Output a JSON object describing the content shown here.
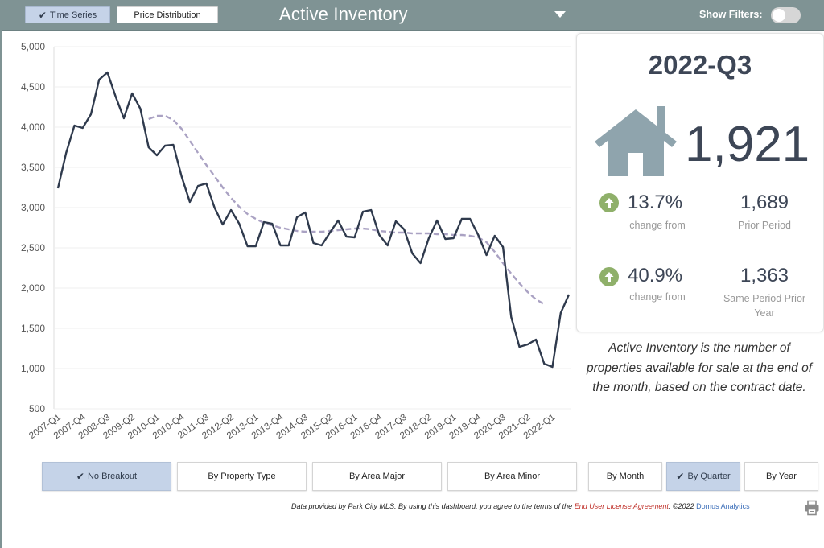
{
  "header": {
    "tabs": [
      {
        "label": "Time Series",
        "active": true
      },
      {
        "label": "Price Distribution",
        "active": false
      }
    ],
    "title": "Active Inventory",
    "filters_label": "Show Filters:",
    "filters_on": false
  },
  "chart_data": {
    "type": "line",
    "ylim": [
      500,
      5000
    ],
    "y_ticks": [
      "500",
      "1,000",
      "1,500",
      "2,000",
      "2,500",
      "3,000",
      "3,500",
      "4,000",
      "4,500",
      "5,000"
    ],
    "y_tick_values": [
      500,
      1000,
      1500,
      2000,
      2500,
      3000,
      3500,
      4000,
      4500,
      5000
    ],
    "x_tick_labels": [
      "2007-Q1",
      "2007-Q4",
      "2008-Q3",
      "2009-Q2",
      "2010-Q1",
      "2010-Q4",
      "2011-Q3",
      "2012-Q2",
      "2013-Q1",
      "2013-Q4",
      "2014-Q3",
      "2015-Q2",
      "2016-Q1",
      "2016-Q4",
      "2017-Q3",
      "2018-Q2",
      "2019-Q1",
      "2019-Q4",
      "2020-Q3",
      "2021-Q2",
      "2022-Q1"
    ],
    "grid": true,
    "series": [
      {
        "color": "#2f3a4d",
        "style": "solid",
        "values": [
          3240,
          3680,
          4020,
          3990,
          4160,
          4590,
          4680,
          4380,
          4110,
          4420,
          4230,
          3750,
          3650,
          3770,
          3780,
          3390,
          3070,
          3270,
          3300,
          3000,
          2790,
          2970,
          2800,
          2520,
          2520,
          2820,
          2800,
          2530,
          2530,
          2880,
          2940,
          2560,
          2530,
          2690,
          2840,
          2640,
          2630,
          2950,
          2970,
          2660,
          2530,
          2830,
          2730,
          2430,
          2310,
          2620,
          2840,
          2610,
          2620,
          2860,
          2860,
          2660,
          2410,
          2650,
          2510,
          1640,
          1270,
          1300,
          1360,
          1060,
          1020,
          1690,
          1920
        ]
      },
      {
        "color": "#aaa2c3",
        "style": "dashed",
        "start_index": 11,
        "values": [
          4100,
          4140,
          4140,
          4090,
          3980,
          3830,
          3680,
          3530,
          3390,
          3250,
          3120,
          3010,
          2920,
          2860,
          2810,
          2780,
          2750,
          2730,
          2710,
          2700,
          2700,
          2700,
          2710,
          2720,
          2730,
          2740,
          2740,
          2730,
          2710,
          2700,
          2690,
          2690,
          2680,
          2680,
          2680,
          2670,
          2670,
          2660,
          2660,
          2650,
          2630,
          2570,
          2450,
          2310,
          2180,
          2060,
          1950,
          1860,
          1800
        ]
      }
    ]
  },
  "stats": {
    "period": "2022-Q3",
    "value": "1,921",
    "change1_pct": "13.7%",
    "change1_label": "change from",
    "prior_value": "1,689",
    "prior_label": "Prior Period",
    "change2_pct": "40.9%",
    "change2_label": "change from",
    "same_period_value": "1,363",
    "same_period_label_line1": "Same Period Prior",
    "same_period_label_line2": "Year",
    "up_color": "#8fb06a",
    "house_color": "#8fa4ad"
  },
  "description": "Active Inventory is the number of properties available for sale at the end of the month, based on the contract date.",
  "breakout_buttons": [
    {
      "label": "No Breakout",
      "active": true
    },
    {
      "label": "By Property Type",
      "active": false
    },
    {
      "label": "By Area Major",
      "active": false
    },
    {
      "label": "By Area Minor",
      "active": false
    }
  ],
  "period_buttons": [
    {
      "label": "By Month",
      "active": false
    },
    {
      "label": "By Quarter",
      "active": true
    },
    {
      "label": "By Year",
      "active": false
    }
  ],
  "footer": {
    "text1": "Data provided by Park City MLS.  By using this dashboard, you agree to the terms of the ",
    "eula": "End User License Agreement",
    "text2": ".  ©2022 ",
    "company": "Domus Analytics"
  },
  "print_icon": "printer-icon"
}
